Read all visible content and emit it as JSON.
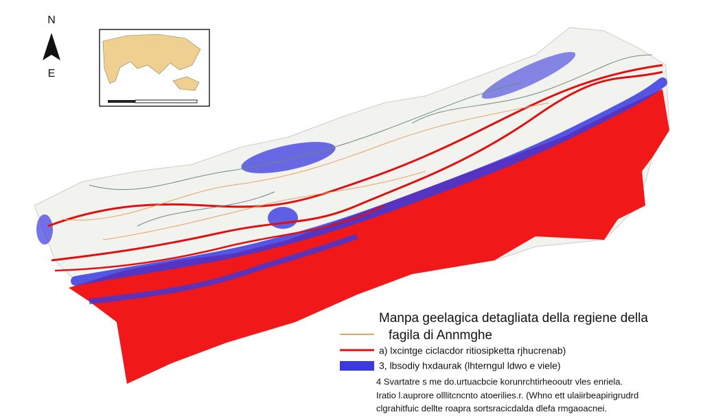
{
  "compass": {
    "north": "N",
    "east": "E"
  },
  "legend": {
    "title_lines": [
      "Manpa geelagica detagliata della regiene della",
      "fagila di Annmghe"
    ],
    "items": [
      "a) lxcintge ciclacdor ritiosipketta rjhucrenab)",
      "3, lbsodiy hxdaurak (lhterngul ldwo e viele)"
    ]
  },
  "footnote": [
    "4 Svartatre s me do.urtuacbcie korunrchtirheooutr vles enriela.",
    "Iratio l.auprore olllitcncnto atoerilies.r. (Whno ett ulaiirbeapirigrudrd",
    "clgrahitfuic dellte roapra sortsracicdalda dlefa rmgaoacnei."
  ]
}
